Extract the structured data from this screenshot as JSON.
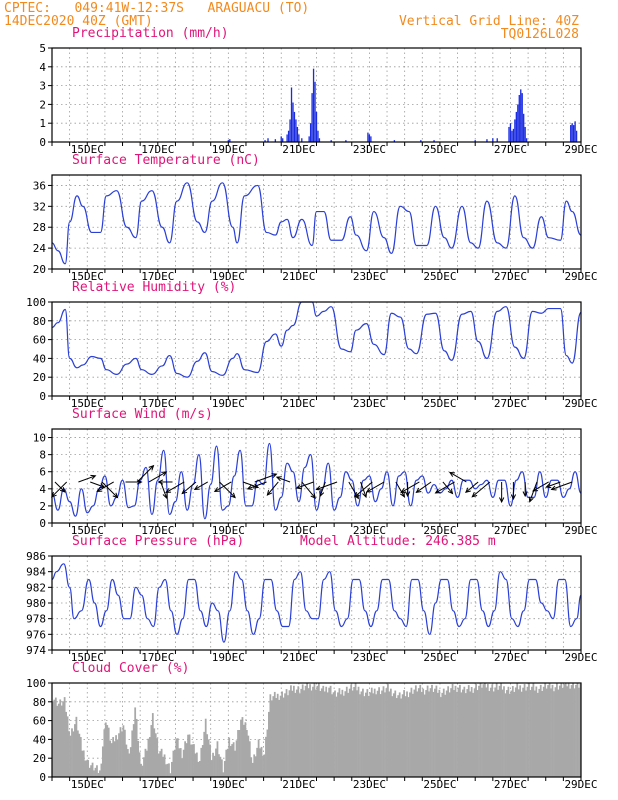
{
  "header": {
    "line1_left": "CPTEC:   049:41W-12:37S   ARAGUACU (TO)",
    "line2_left": "14DEC2020 40Z (GMT)",
    "line1_right": "Vertical Grid Line: 40Z",
    "line2_right": "TQ0126L028"
  },
  "colors": {
    "header": "#f28a1e",
    "title": "#e0157a",
    "line": "#2a3fd6",
    "bar": "#1a2be0",
    "cloud": "#a8a8a8",
    "grid": "#9a9a9a"
  },
  "chart_data": [
    {
      "type": "bar",
      "title": "Precipitation (mm/h)",
      "xlabel": "",
      "ylabel": "",
      "ylim": [
        0,
        5
      ],
      "yticks": [
        0,
        1,
        2,
        3,
        4,
        5
      ],
      "xlim": [
        0,
        360
      ],
      "xticks": [
        {
          "x": 24,
          "label": "15DEC"
        },
        {
          "x": 72,
          "label": "17DEC"
        },
        {
          "x": 120,
          "label": "19DEC"
        },
        {
          "x": 168,
          "label": "21DEC"
        },
        {
          "x": 216,
          "label": "23DEC"
        },
        {
          "x": 264,
          "label": "25DEC"
        },
        {
          "x": 312,
          "label": "27DEC"
        },
        {
          "x": 360,
          "label": "29DEC"
        }
      ],
      "x_unit": "hours since 14DEC2020 00Z",
      "grid": true,
      "bars": [
        [
          120,
          0.1
        ],
        [
          121,
          0.15
        ],
        [
          145,
          0.1
        ],
        [
          147,
          0.2
        ],
        [
          152,
          0.15
        ],
        [
          156,
          0.3
        ],
        [
          157,
          0.2
        ],
        [
          160,
          0.4
        ],
        [
          161,
          0.6
        ],
        [
          162,
          1.2
        ],
        [
          163,
          2.9
        ],
        [
          164,
          2.1
        ],
        [
          165,
          1.6
        ],
        [
          166,
          1.2
        ],
        [
          167,
          0.8
        ],
        [
          168,
          0.4
        ],
        [
          170,
          0.2
        ],
        [
          175,
          0.3
        ],
        [
          176,
          1.0
        ],
        [
          177,
          2.6
        ],
        [
          178,
          3.9
        ],
        [
          179,
          3.2
        ],
        [
          180,
          1.6
        ],
        [
          181,
          0.6
        ],
        [
          182,
          0.2
        ],
        [
          190,
          0.1
        ],
        [
          200,
          0.1
        ],
        [
          215,
          0.5
        ],
        [
          216,
          0.4
        ],
        [
          217,
          0.3
        ],
        [
          233,
          0.1
        ],
        [
          251,
          0.1
        ],
        [
          260,
          0.1
        ],
        [
          288,
          0.1
        ],
        [
          296,
          0.15
        ],
        [
          300,
          0.2
        ],
        [
          303,
          0.2
        ],
        [
          311,
          0.8
        ],
        [
          312,
          1.0
        ],
        [
          313,
          0.6
        ],
        [
          314,
          0.7
        ],
        [
          315,
          1.2
        ],
        [
          316,
          1.6
        ],
        [
          317,
          2.0
        ],
        [
          318,
          2.5
        ],
        [
          319,
          2.8
        ],
        [
          320,
          2.6
        ],
        [
          321,
          1.5
        ],
        [
          322,
          0.8
        ],
        [
          323,
          0.2
        ],
        [
          353,
          0.9
        ],
        [
          354,
          1.0
        ],
        [
          355,
          0.9
        ],
        [
          356,
          1.1
        ],
        [
          357,
          0.6
        ]
      ]
    },
    {
      "type": "line",
      "title": "Surface Temperature (nC)",
      "xlabel": "",
      "ylabel": "",
      "ylim": [
        20,
        38
      ],
      "yticks": [
        20,
        24,
        28,
        32,
        36
      ],
      "xlim": [
        0,
        360
      ],
      "grid": true,
      "x": [
        0,
        4,
        9,
        12,
        17,
        21,
        27,
        33,
        37,
        44,
        51,
        57,
        61,
        68,
        75,
        80,
        85,
        92,
        99,
        104,
        109,
        116,
        123,
        126,
        131,
        140,
        146,
        152,
        156,
        160,
        164,
        170,
        177,
        180,
        185,
        190,
        197,
        203,
        207,
        214,
        219,
        226,
        231,
        237,
        243,
        248,
        255,
        261,
        267,
        272,
        279,
        285,
        290,
        296,
        303,
        309,
        315,
        321,
        327,
        333,
        338,
        346,
        350,
        354,
        360
      ],
      "y": [
        25,
        23.5,
        21,
        29,
        34,
        32,
        27,
        27,
        34,
        35,
        28,
        26,
        33,
        35,
        28,
        25,
        33,
        36.5,
        29,
        27,
        33,
        36.5,
        28,
        25,
        34,
        36,
        27,
        26.5,
        29,
        29.5,
        26,
        29.5,
        24.5,
        31,
        31,
        25.5,
        25.5,
        30,
        26.5,
        23.5,
        31,
        26,
        23,
        32,
        31,
        24.5,
        24.5,
        32,
        26,
        24,
        32,
        25,
        24,
        33,
        25,
        24,
        34,
        26,
        24,
        30,
        26,
        25.5,
        33,
        31,
        26.5
      ]
    },
    {
      "type": "line",
      "title": "Relative Humidity (%)",
      "xlabel": "",
      "ylabel": "",
      "ylim": [
        0,
        100
      ],
      "yticks": [
        0,
        20,
        40,
        60,
        80,
        100
      ],
      "xlim": [
        0,
        360
      ],
      "grid": true,
      "x": [
        0,
        4,
        9,
        12,
        17,
        21,
        27,
        33,
        37,
        44,
        51,
        57,
        61,
        68,
        75,
        80,
        85,
        92,
        99,
        104,
        109,
        116,
        123,
        126,
        131,
        140,
        146,
        152,
        156,
        160,
        164,
        170,
        177,
        180,
        185,
        190,
        197,
        203,
        207,
        214,
        219,
        226,
        231,
        237,
        243,
        248,
        255,
        261,
        267,
        272,
        279,
        285,
        290,
        296,
        303,
        309,
        315,
        321,
        327,
        333,
        338,
        346,
        350,
        354,
        360
      ],
      "y": [
        73,
        78,
        92,
        40,
        30,
        33,
        42,
        40,
        28,
        23,
        34,
        40,
        28,
        23,
        32,
        43,
        24,
        20,
        37,
        46,
        26,
        22,
        40,
        45,
        28,
        25,
        58,
        66,
        53,
        70,
        75,
        100,
        100,
        85,
        90,
        95,
        50,
        47,
        70,
        77,
        55,
        44,
        88,
        84,
        50,
        45,
        87,
        88,
        48,
        38,
        87,
        90,
        58,
        40,
        90,
        95,
        52,
        40,
        90,
        88,
        93,
        93,
        43,
        35,
        89
      ]
    },
    {
      "type": "line",
      "title": "Surface Wind (m/s)",
      "xlabel": "",
      "ylabel": "",
      "ylim": [
        0,
        11
      ],
      "yticks": [
        0,
        2,
        4,
        6,
        8,
        10
      ],
      "xlim": [
        0,
        360
      ],
      "grid": true,
      "x": [
        0,
        4,
        8,
        12,
        16,
        20,
        24,
        28,
        32,
        36,
        40,
        44,
        48,
        52,
        56,
        60,
        64,
        68,
        72,
        76,
        80,
        84,
        88,
        92,
        96,
        100,
        104,
        108,
        112,
        116,
        120,
        124,
        128,
        132,
        136,
        140,
        144,
        148,
        152,
        156,
        160,
        164,
        168,
        172,
        176,
        180,
        184,
        188,
        192,
        196,
        200,
        204,
        208,
        212,
        216,
        220,
        224,
        228,
        232,
        236,
        240,
        244,
        248,
        252,
        256,
        260,
        264,
        268,
        272,
        276,
        280,
        284,
        288,
        292,
        296,
        300,
        304,
        308,
        312,
        316,
        320,
        324,
        328,
        332,
        336,
        340,
        344,
        348,
        352,
        356,
        360
      ],
      "y": [
        3.5,
        1.5,
        4,
        2.5,
        0.8,
        4,
        1.2,
        2,
        4,
        5.5,
        2,
        3,
        5,
        1.8,
        2,
        5,
        6.5,
        1,
        5,
        8.5,
        1,
        2.5,
        6,
        1.5,
        4.5,
        8,
        0.5,
        4.5,
        9,
        1.5,
        2,
        5.5,
        8.5,
        2,
        2,
        5,
        4.5,
        9.3,
        1.5,
        3,
        7,
        6,
        2.5,
        6.5,
        8,
        1.5,
        4,
        7,
        1.5,
        3,
        6,
        5,
        2,
        5,
        5.5,
        2.5,
        4,
        6,
        2,
        5.5,
        6,
        2,
        5,
        5.5,
        3.5,
        4.5,
        3.5,
        4,
        5,
        3,
        5,
        5,
        4,
        4.5,
        5,
        3,
        5,
        5,
        2,
        5,
        6,
        3,
        3,
        6,
        3,
        5,
        5,
        3,
        4,
        6,
        3.5
      ],
      "arrows_every_hours": 8,
      "arrow_directions_deg_to": [
        135,
        225,
        70,
        110,
        135,
        240,
        90,
        45,
        60,
        160,
        270,
        240,
        230,
        240,
        135,
        240,
        110,
        70,
        250,
        220,
        290,
        140,
        250,
        200,
        250,
        150,
        160,
        230,
        240,
        150,
        180,
        240,
        235,
        140,
        240,
        300,
        230,
        230,
        180,
        180,
        180,
        200,
        240,
        250,
        250,
        170
      ]
    },
    {
      "type": "line",
      "title": "Surface Pressure (hPa)",
      "annotation": "Model Altitude: 246.385 m",
      "xlabel": "",
      "ylabel": "",
      "ylim": [
        974,
        986
      ],
      "yticks": [
        974,
        976,
        978,
        980,
        982,
        984,
        986
      ],
      "xlim": [
        0,
        360
      ],
      "grid": true,
      "x": [
        0,
        3,
        8,
        12,
        15,
        20,
        25,
        29,
        33,
        37,
        41,
        45,
        49,
        53,
        57,
        61,
        65,
        69,
        73,
        77,
        81,
        85,
        89,
        93,
        97,
        101,
        105,
        109,
        113,
        117,
        121,
        125,
        129,
        133,
        137,
        141,
        145,
        149,
        153,
        157,
        161,
        165,
        169,
        173,
        177,
        181,
        185,
        189,
        193,
        197,
        201,
        205,
        209,
        213,
        217,
        221,
        225,
        229,
        233,
        237,
        241,
        245,
        249,
        253,
        257,
        261,
        265,
        269,
        273,
        277,
        281,
        285,
        289,
        293,
        297,
        301,
        305,
        309,
        313,
        317,
        321,
        325,
        329,
        333,
        337,
        341,
        345,
        349,
        353,
        357,
        360
      ],
      "y": [
        983,
        984,
        985,
        982,
        978,
        979,
        983,
        980,
        977,
        979,
        983,
        981,
        978,
        978,
        982,
        981,
        978,
        977,
        982,
        983,
        979,
        976,
        978,
        983,
        983,
        979,
        977,
        980,
        979,
        975,
        979,
        984,
        983,
        979,
        976,
        978,
        983,
        983,
        979,
        977,
        977,
        983,
        984,
        979,
        978,
        978,
        983,
        984,
        979,
        977,
        978,
        983,
        983,
        979,
        977,
        979,
        983,
        983,
        979,
        978,
        977,
        983,
        983,
        979,
        976,
        980,
        983,
        983,
        979,
        977,
        978,
        983,
        983,
        979,
        977,
        979,
        984,
        983,
        978,
        977,
        979,
        983,
        983,
        980,
        979,
        978,
        983,
        983,
        977,
        978,
        981
      ]
    },
    {
      "type": "area",
      "title": "Cloud Cover (%)",
      "xlabel": "",
      "ylabel": "",
      "ylim": [
        0,
        100
      ],
      "yticks": [
        0,
        20,
        40,
        60,
        80,
        100
      ],
      "xlim": [
        0,
        360
      ],
      "grid": true,
      "x": [
        0,
        4,
        8,
        12,
        16,
        20,
        24,
        28,
        32,
        36,
        40,
        44,
        48,
        52,
        56,
        60,
        64,
        68,
        72,
        76,
        80,
        84,
        88,
        92,
        96,
        100,
        104,
        108,
        112,
        116,
        120,
        124,
        128,
        132,
        136,
        140,
        144,
        148,
        152,
        156,
        160,
        164,
        168,
        172,
        176,
        180,
        184,
        188,
        192,
        196,
        200,
        204,
        208,
        212,
        216,
        220,
        224,
        228,
        232,
        236,
        240,
        244,
        248,
        252,
        256,
        260,
        264,
        268,
        272,
        276,
        280,
        284,
        288,
        292,
        296,
        300,
        304,
        308,
        312,
        316,
        320,
        324,
        328,
        332,
        336,
        340,
        344,
        348,
        352,
        356,
        360
      ],
      "y": [
        85,
        78,
        80,
        45,
        60,
        30,
        15,
        10,
        5,
        62,
        35,
        45,
        55,
        20,
        75,
        10,
        30,
        65,
        28,
        22,
        8,
        40,
        25,
        45,
        30,
        18,
        58,
        20,
        35,
        8,
        40,
        32,
        60,
        55,
        15,
        35,
        25,
        84,
        86,
        88,
        90,
        95,
        93,
        96,
        97,
        97,
        92,
        96,
        88,
        90,
        93,
        95,
        94,
        90,
        89,
        93,
        92,
        94,
        90,
        86,
        88,
        92,
        94,
        92,
        95,
        93,
        90,
        92,
        94,
        96,
        92,
        93,
        96,
        98,
        97,
        95,
        96,
        94,
        92,
        95,
        96,
        96,
        94,
        95,
        97,
        96,
        97,
        98,
        99,
        98,
        98
      ]
    }
  ]
}
